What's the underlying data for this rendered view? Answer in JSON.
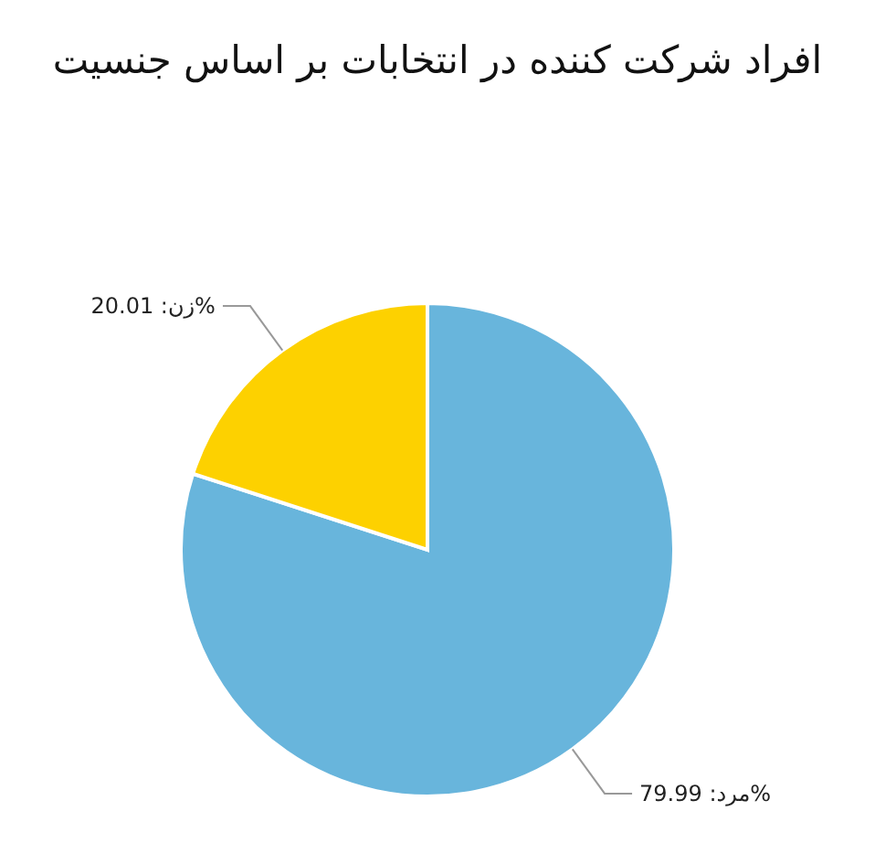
{
  "chart_data": {
    "type": "pie",
    "title": "افراد شرکت کننده در انتخابات بر اساس جنسیت",
    "categories": [
      null,
      null
    ],
    "values": [
      79.99,
      20.01
    ],
    "colors": [
      "#68b5dc",
      "#fdd100"
    ],
    "value_labels": [
      "%مرد: 79.99",
      "%زن: 20.01"
    ],
    "legend": false
  }
}
